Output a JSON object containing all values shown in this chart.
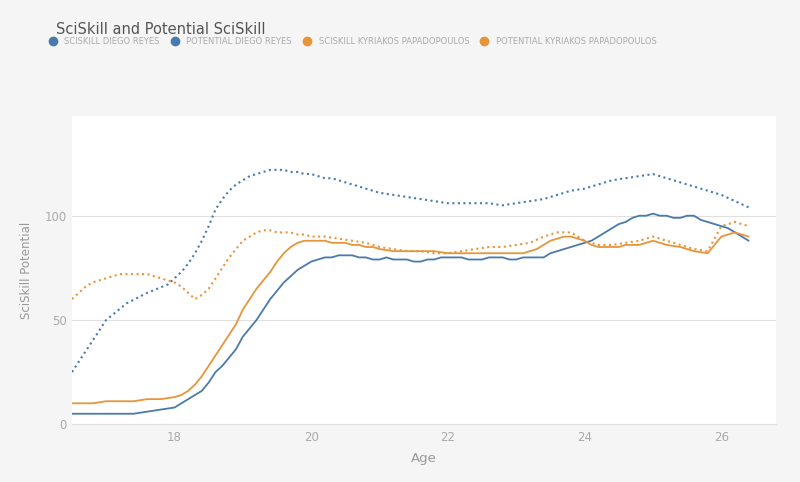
{
  "title": "SciSkill and Potential SciSkill",
  "xlabel": "Age",
  "ylabel": "SciSkill Potential",
  "bg_color": "#f5f5f5",
  "plot_bg_color": "#ffffff",
  "grid_color": "#e0e0e0",
  "blue_color": "#4a7aac",
  "orange_color": "#e8943a",
  "legend_labels": [
    "SCISKILL DIEGO REYES",
    "POTENTIAL DIEGO REYES",
    "SCISKILL KYRIAKOS PAPADOPOULOS",
    "POTENTIAL KYRIAKOS PAPADOPOULOS"
  ],
  "ylim": [
    0,
    148
  ],
  "yticks": [
    0,
    50,
    100
  ],
  "age_start": 16.5,
  "age_end": 26.8,
  "xticks": [
    18,
    20,
    22,
    24,
    26
  ],
  "diego_sciskill_age": [
    16.5,
    16.6,
    16.7,
    16.8,
    17.0,
    17.2,
    17.4,
    17.6,
    17.8,
    18.0,
    18.05,
    18.1,
    18.15,
    18.2,
    18.25,
    18.3,
    18.35,
    18.4,
    18.5,
    18.6,
    18.7,
    18.8,
    18.9,
    19.0,
    19.1,
    19.2,
    19.3,
    19.4,
    19.5,
    19.6,
    19.7,
    19.8,
    19.9,
    20.0,
    20.1,
    20.2,
    20.3,
    20.4,
    20.5,
    20.6,
    20.7,
    20.8,
    20.9,
    21.0,
    21.1,
    21.2,
    21.3,
    21.4,
    21.5,
    21.6,
    21.7,
    21.8,
    21.9,
    22.0,
    22.1,
    22.2,
    22.3,
    22.4,
    22.5,
    22.6,
    22.7,
    22.8,
    22.9,
    23.0,
    23.1,
    23.2,
    23.3,
    23.4,
    23.5,
    23.6,
    23.7,
    23.8,
    23.9,
    24.0,
    24.1,
    24.2,
    24.3,
    24.4,
    24.5,
    24.6,
    24.7,
    24.8,
    24.9,
    25.0,
    25.1,
    25.2,
    25.3,
    25.4,
    25.5,
    25.6,
    25.7,
    25.8,
    25.9,
    26.0,
    26.1,
    26.2,
    26.3,
    26.4
  ],
  "diego_sciskill_val": [
    5,
    5,
    5,
    5,
    5,
    5,
    5,
    6,
    7,
    8,
    9,
    10,
    11,
    12,
    13,
    14,
    15,
    16,
    20,
    25,
    28,
    32,
    36,
    42,
    46,
    50,
    55,
    60,
    64,
    68,
    71,
    74,
    76,
    78,
    79,
    80,
    80,
    81,
    81,
    81,
    80,
    80,
    79,
    79,
    80,
    79,
    79,
    79,
    78,
    78,
    79,
    79,
    80,
    80,
    80,
    80,
    79,
    79,
    79,
    80,
    80,
    80,
    79,
    79,
    80,
    80,
    80,
    80,
    82,
    83,
    84,
    85,
    86,
    87,
    88,
    90,
    92,
    94,
    96,
    97,
    99,
    100,
    100,
    101,
    100,
    100,
    99,
    99,
    100,
    100,
    98,
    97,
    96,
    95,
    94,
    92,
    90,
    88
  ],
  "diego_potential_age": [
    16.5,
    16.7,
    17.0,
    17.3,
    17.6,
    17.9,
    18.0,
    18.1,
    18.2,
    18.3,
    18.4,
    18.5,
    18.6,
    18.7,
    18.8,
    18.9,
    19.0,
    19.1,
    19.2,
    19.3,
    19.4,
    19.5,
    19.6,
    19.7,
    19.8,
    19.9,
    20.0,
    20.1,
    20.2,
    20.3,
    20.4,
    20.5,
    20.6,
    20.7,
    20.8,
    20.9,
    21.0,
    21.2,
    21.4,
    21.6,
    21.8,
    22.0,
    22.2,
    22.4,
    22.6,
    22.8,
    23.0,
    23.2,
    23.4,
    23.6,
    23.8,
    24.0,
    24.2,
    24.4,
    24.6,
    24.8,
    25.0,
    25.2,
    25.4,
    25.6,
    25.8,
    26.0,
    26.2,
    26.4
  ],
  "diego_potential_val": [
    25,
    35,
    50,
    58,
    63,
    67,
    70,
    73,
    77,
    82,
    88,
    95,
    103,
    108,
    112,
    115,
    117,
    119,
    120,
    121,
    122,
    122,
    122,
    121,
    121,
    120,
    120,
    119,
    118,
    118,
    117,
    116,
    115,
    114,
    113,
    112,
    111,
    110,
    109,
    108,
    107,
    106,
    106,
    106,
    106,
    105,
    106,
    107,
    108,
    110,
    112,
    113,
    115,
    117,
    118,
    119,
    120,
    118,
    116,
    114,
    112,
    110,
    107,
    104
  ],
  "papa_sciskill_age": [
    16.5,
    16.6,
    16.7,
    16.8,
    17.0,
    17.2,
    17.4,
    17.6,
    17.8,
    18.0,
    18.1,
    18.2,
    18.3,
    18.4,
    18.5,
    18.6,
    18.7,
    18.8,
    18.9,
    19.0,
    19.1,
    19.2,
    19.3,
    19.4,
    19.5,
    19.6,
    19.7,
    19.8,
    19.9,
    20.0,
    20.1,
    20.2,
    20.3,
    20.4,
    20.5,
    20.6,
    20.7,
    20.8,
    20.9,
    21.0,
    21.2,
    21.4,
    21.6,
    21.8,
    22.0,
    22.2,
    22.4,
    22.6,
    22.8,
    23.0,
    23.1,
    23.2,
    23.3,
    23.4,
    23.5,
    23.6,
    23.7,
    23.8,
    24.0,
    24.1,
    24.2,
    24.3,
    24.4,
    24.5,
    24.6,
    24.7,
    24.8,
    24.9,
    25.0,
    25.1,
    25.2,
    25.4,
    25.6,
    25.8,
    26.0,
    26.2,
    26.4
  ],
  "papa_sciskill_val": [
    10,
    10,
    10,
    10,
    11,
    11,
    11,
    12,
    12,
    13,
    14,
    16,
    19,
    23,
    28,
    33,
    38,
    43,
    48,
    55,
    60,
    65,
    69,
    73,
    78,
    82,
    85,
    87,
    88,
    88,
    88,
    88,
    87,
    87,
    87,
    86,
    86,
    85,
    85,
    84,
    83,
    83,
    83,
    83,
    82,
    82,
    82,
    82,
    82,
    82,
    82,
    83,
    84,
    86,
    88,
    89,
    90,
    90,
    88,
    86,
    85,
    85,
    85,
    85,
    86,
    86,
    86,
    87,
    88,
    87,
    86,
    85,
    83,
    82,
    90,
    92,
    90
  ],
  "papa_potential_age": [
    16.5,
    16.6,
    16.7,
    16.8,
    17.0,
    17.2,
    17.4,
    17.6,
    17.8,
    18.0,
    18.1,
    18.2,
    18.3,
    18.4,
    18.5,
    18.6,
    18.7,
    18.8,
    18.9,
    19.0,
    19.1,
    19.2,
    19.3,
    19.4,
    19.5,
    19.6,
    19.7,
    19.8,
    19.9,
    20.0,
    20.2,
    20.4,
    20.6,
    20.8,
    21.0,
    21.2,
    21.4,
    21.6,
    21.8,
    22.0,
    22.2,
    22.4,
    22.6,
    22.8,
    23.0,
    23.2,
    23.4,
    23.6,
    23.8,
    24.0,
    24.2,
    24.4,
    24.6,
    24.8,
    25.0,
    25.2,
    25.4,
    25.6,
    25.8,
    26.0,
    26.2,
    26.4
  ],
  "papa_potential_val": [
    60,
    63,
    66,
    68,
    70,
    72,
    72,
    72,
    70,
    68,
    66,
    63,
    60,
    62,
    65,
    70,
    75,
    80,
    84,
    88,
    90,
    92,
    93,
    93,
    92,
    92,
    92,
    91,
    91,
    90,
    90,
    89,
    88,
    87,
    85,
    84,
    83,
    83,
    82,
    82,
    83,
    84,
    85,
    85,
    86,
    87,
    90,
    92,
    92,
    88,
    86,
    86,
    87,
    88,
    90,
    88,
    86,
    84,
    83,
    95,
    97,
    95
  ]
}
